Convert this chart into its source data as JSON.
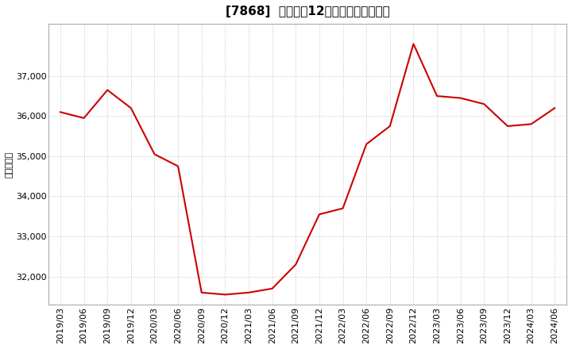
{
  "title": "[7868]  売上高の12か月移動合計の推移",
  "ylabel": "（百万円）",
  "line_color": "#cc0000",
  "background_color": "#ffffff",
  "plot_bg_color": "#ffffff",
  "grid_color": "#bbbbbb",
  "dates": [
    "2019/03",
    "2019/06",
    "2019/09",
    "2019/12",
    "2020/03",
    "2020/06",
    "2020/09",
    "2020/12",
    "2021/03",
    "2021/06",
    "2021/09",
    "2021/12",
    "2022/03",
    "2022/06",
    "2022/09",
    "2022/12",
    "2023/03",
    "2023/06",
    "2023/09",
    "2023/12",
    "2024/03",
    "2024/06"
  ],
  "values": [
    36100,
    35950,
    36650,
    36200,
    35050,
    34750,
    31600,
    31550,
    31600,
    31700,
    32300,
    33550,
    33700,
    35300,
    35750,
    37800,
    36500,
    36450,
    36300,
    35750,
    35800,
    36200
  ],
  "yticks": [
    32000,
    33000,
    34000,
    35000,
    36000,
    37000
  ],
  "ylim": [
    31300,
    38300
  ],
  "title_fontsize": 11,
  "label_fontsize": 8,
  "tick_fontsize": 8
}
